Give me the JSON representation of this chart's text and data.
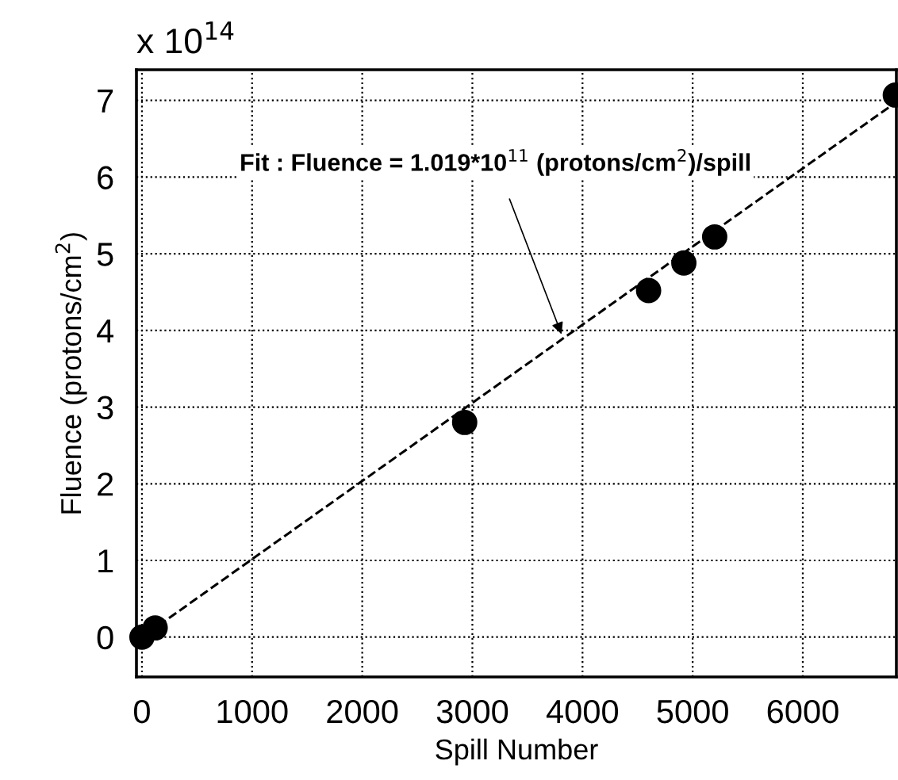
{
  "chart_data": {
    "type": "scatter",
    "xlabel": "Spill Number",
    "ylabel": "Fluence (protons/cm$^{2}$)",
    "xlim": [
      -50,
      6850
    ],
    "ylim": [
      -0.52,
      7.4
    ],
    "xticks": [
      0,
      1000,
      2000,
      3000,
      4000,
      5000,
      6000
    ],
    "yticks": [
      0,
      1,
      2,
      3,
      4,
      5,
      6,
      7
    ],
    "grid": true,
    "series": [
      {
        "color": "#000000",
        "marker": "circle",
        "x": [
          0,
          120,
          2930,
          4600,
          4920,
          5200,
          6840
        ],
        "values": [
          0.0,
          0.12,
          2.8,
          4.52,
          4.88,
          5.22,
          7.07
        ]
      },
      {
        "type": "line",
        "color": "#000000",
        "marker": "none",
        "line_style": "dashed",
        "x": [
          150,
          6850
        ],
        "values": [
          0.15,
          6.98
        ]
      }
    ],
    "annotations": [
      "x 10$^{14}$",
      {
        "text": "Fit : Fluence = 1.019*10$^{11}$ (protons/cm$^{2}$)/spill",
        "x": 3810,
        "y": 3.95
      }
    ]
  }
}
